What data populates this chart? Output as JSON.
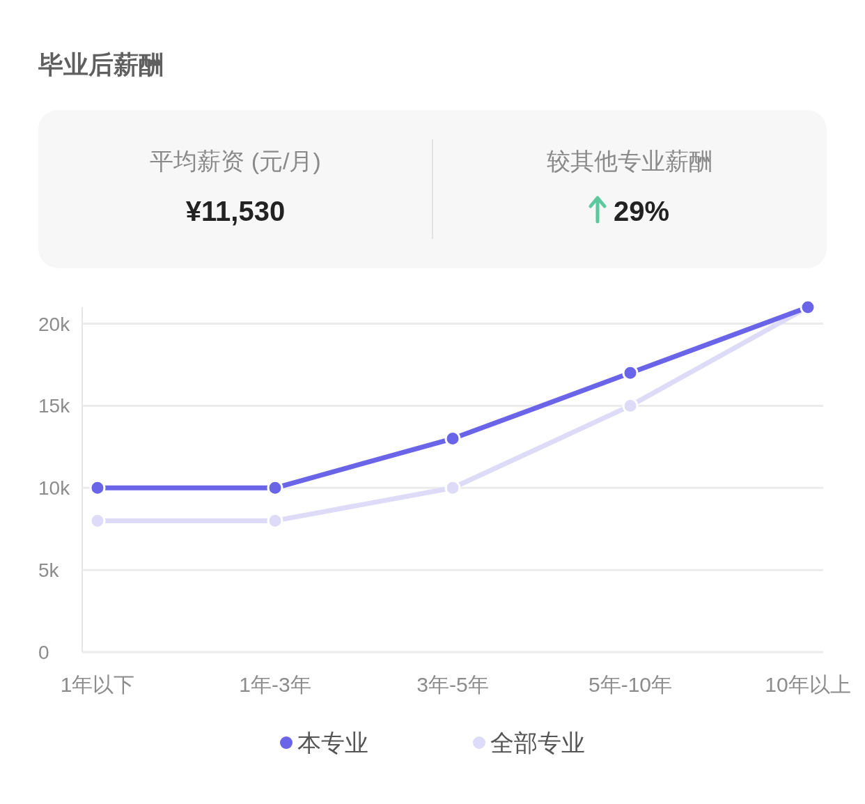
{
  "chart_data": [
    {
      "type": "other",
      "title": "毕业后薪酬",
      "annotations": [
        "平均薪资 (元/月)",
        "¥11,530",
        "较其他专业薪酬",
        "29%"
      ]
    },
    {
      "type": "line",
      "categories": [
        "1年以下",
        "1年-3年",
        "3年-5年",
        "5年-10年",
        "10年以上"
      ],
      "series": [
        {
          "name": "本专业",
          "color": "#6a64e8",
          "values": [
            10000,
            10000,
            13000,
            17000,
            21000
          ]
        },
        {
          "name": "全部专业",
          "color": "#dddbf7",
          "values": [
            8000,
            8000,
            10000,
            15000,
            21000
          ]
        }
      ],
      "ylim": [
        0,
        21000
      ],
      "yticks": [
        0,
        {
          "value": 5000,
          "label": "5k"
        },
        {
          "value": 10000,
          "label": "10k"
        },
        {
          "value": 15000,
          "label": "15k"
        },
        {
          "value": 20000,
          "label": "20k"
        }
      ],
      "grid": "y",
      "legend": "bottom",
      "marker": "circle",
      "line_style": "solid"
    }
  ]
}
